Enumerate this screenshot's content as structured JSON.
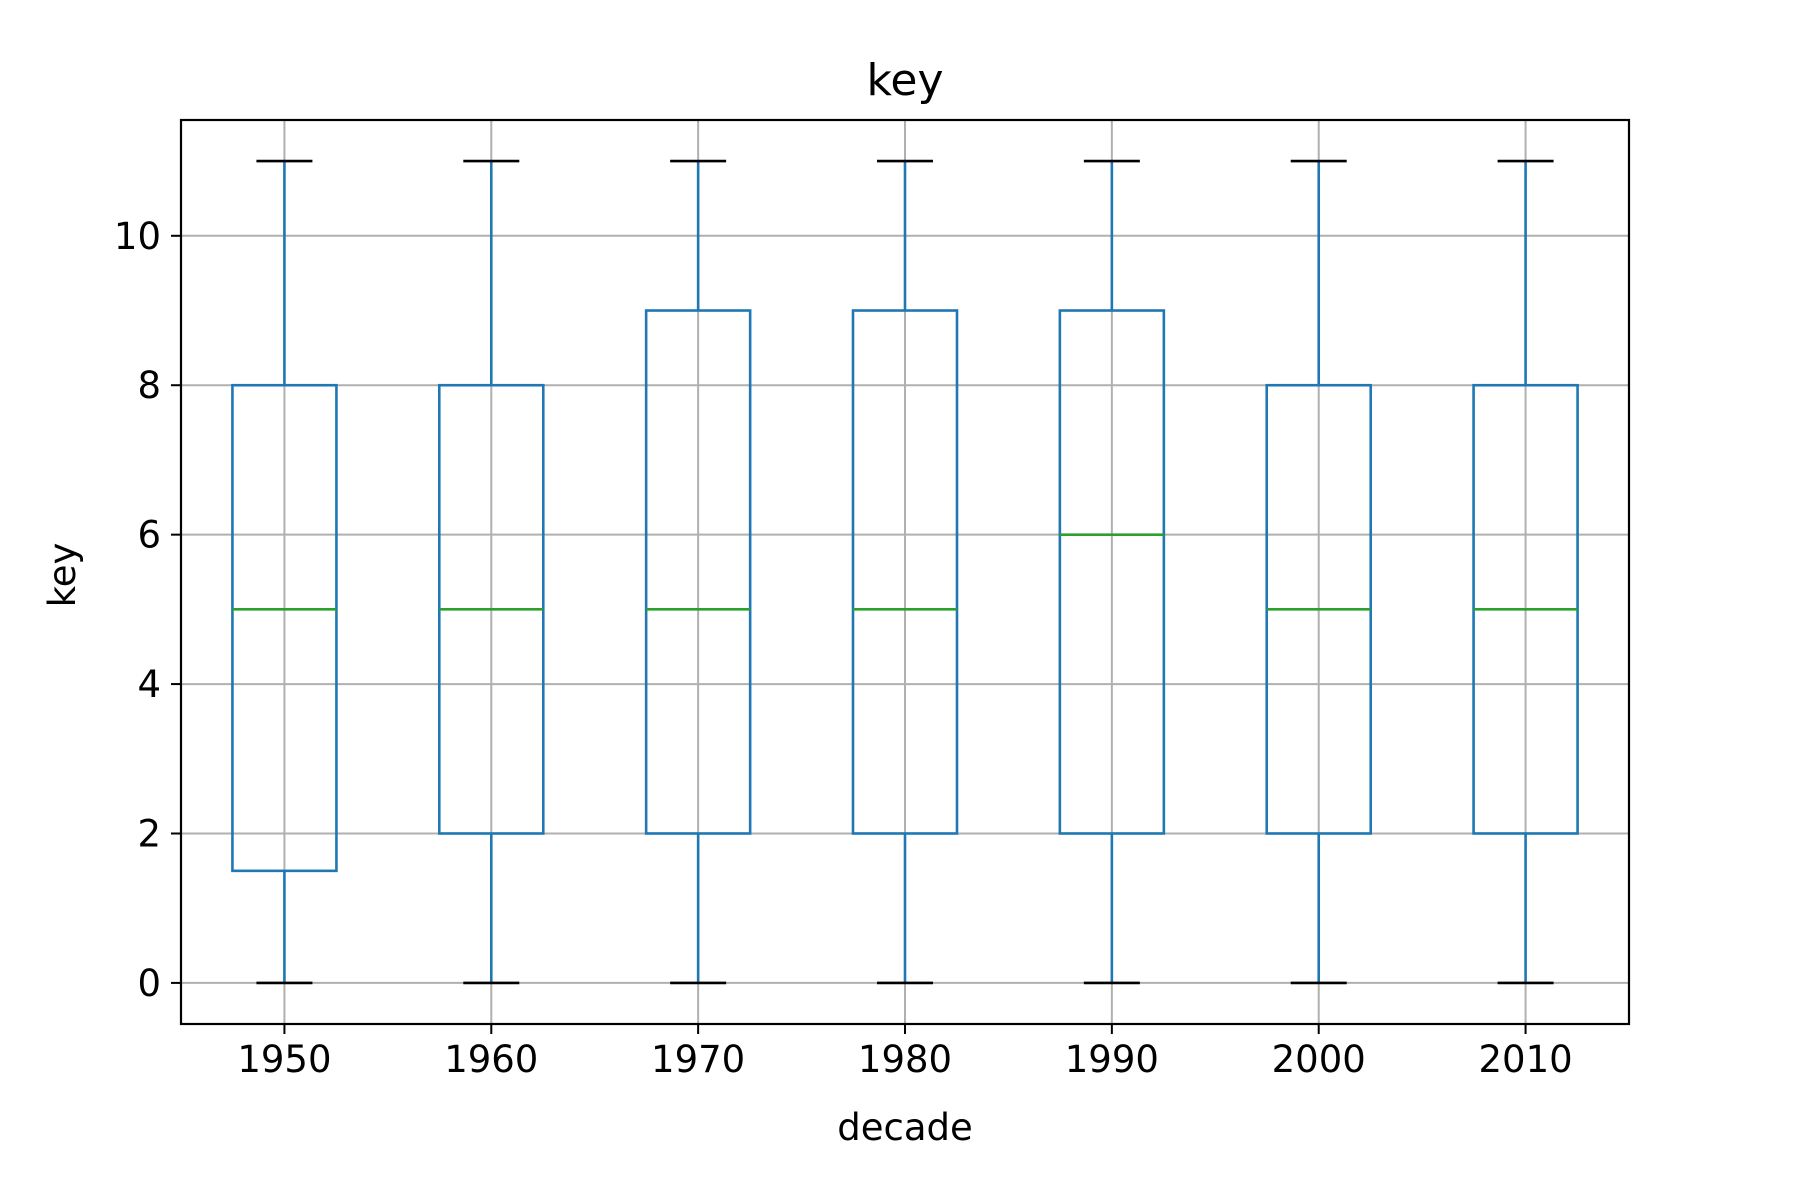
{
  "chart_data": {
    "type": "box",
    "title": "key",
    "xlabel": "decade",
    "ylabel": "key",
    "categories": [
      "1950",
      "1960",
      "1970",
      "1980",
      "1990",
      "2000",
      "2010"
    ],
    "boxes": [
      {
        "category": "1950",
        "whisker_low": 0,
        "q1": 1.5,
        "median": 5,
        "q3": 8,
        "whisker_high": 11
      },
      {
        "category": "1960",
        "whisker_low": 0,
        "q1": 2,
        "median": 5,
        "q3": 8,
        "whisker_high": 11
      },
      {
        "category": "1970",
        "whisker_low": 0,
        "q1": 2,
        "median": 5,
        "q3": 9,
        "whisker_high": 11
      },
      {
        "category": "1980",
        "whisker_low": 0,
        "q1": 2,
        "median": 5,
        "q3": 9,
        "whisker_high": 11
      },
      {
        "category": "1990",
        "whisker_low": 0,
        "q1": 2,
        "median": 6,
        "q3": 9,
        "whisker_high": 11
      },
      {
        "category": "2000",
        "whisker_low": 0,
        "q1": 2,
        "median": 5,
        "q3": 8,
        "whisker_high": 11
      },
      {
        "category": "2010",
        "whisker_low": 0,
        "q1": 2,
        "median": 5,
        "q3": 8,
        "whisker_high": 11
      }
    ],
    "yticks": [
      "0",
      "2",
      "4",
      "6",
      "8",
      "10"
    ],
    "ylim": [
      -0.55,
      11.55
    ],
    "grid": true,
    "colors": {
      "box": "#1f77b4",
      "median": "#2ca02c",
      "cap": "#000000",
      "grid": "#b0b0b0",
      "frame": "#000000"
    }
  }
}
